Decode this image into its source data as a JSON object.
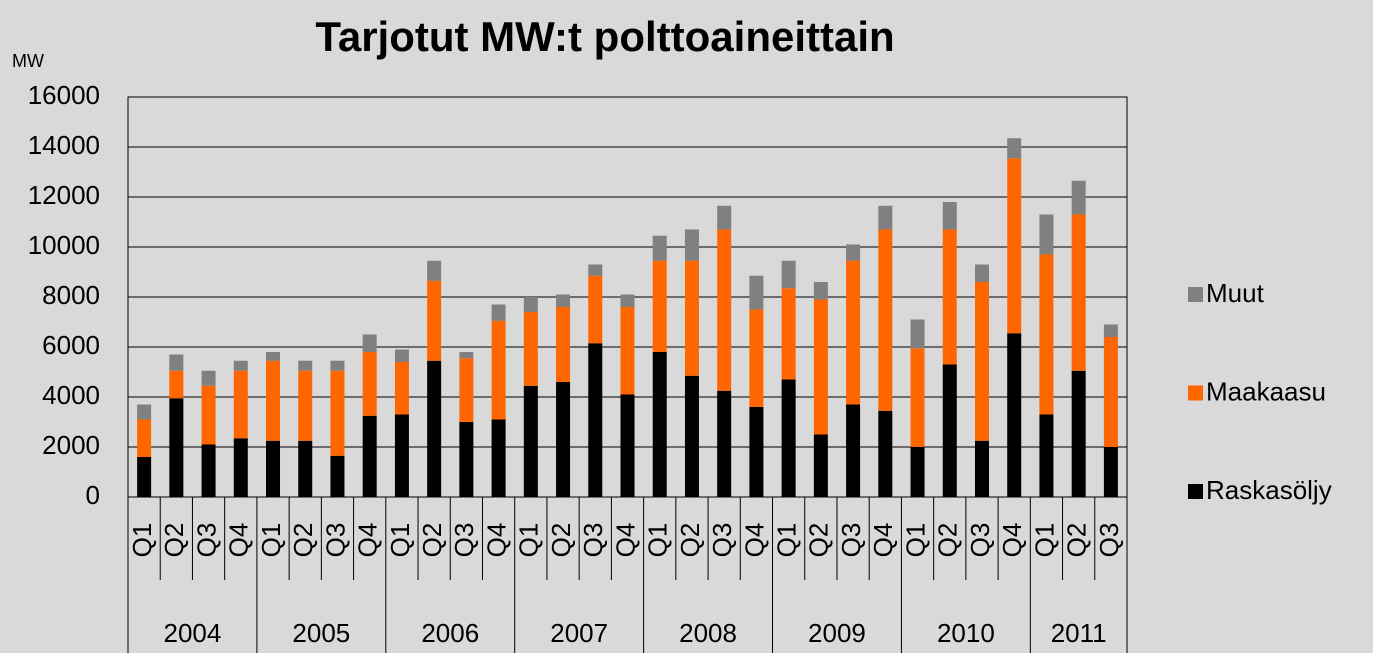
{
  "chart_data": {
    "type": "bar",
    "stacked": true,
    "title": "Tarjotut MW:t polttoaineittain",
    "y_label": "MW",
    "groups": [
      {
        "name": "2004",
        "categories": [
          "Q1",
          "Q2",
          "Q3",
          "Q4"
        ]
      },
      {
        "name": "2005",
        "categories": [
          "Q1",
          "Q2",
          "Q3",
          "Q4"
        ]
      },
      {
        "name": "2006",
        "categories": [
          "Q1",
          "Q2",
          "Q3",
          "Q4"
        ]
      },
      {
        "name": "2007",
        "categories": [
          "Q1",
          "Q2",
          "Q3",
          "Q4"
        ]
      },
      {
        "name": "2008",
        "categories": [
          "Q1",
          "Q2",
          "Q3",
          "Q4"
        ]
      },
      {
        "name": "2009",
        "categories": [
          "Q1",
          "Q2",
          "Q3",
          "Q4"
        ]
      },
      {
        "name": "2010",
        "categories": [
          "Q1",
          "Q2",
          "Q3",
          "Q4"
        ]
      },
      {
        "name": "2011",
        "categories": [
          "Q1",
          "Q2",
          "Q3"
        ]
      }
    ],
    "series": [
      {
        "name": "Raskasöljy",
        "color": "#000000",
        "values": [
          1600,
          3950,
          2100,
          2350,
          2250,
          2250,
          1650,
          3250,
          3300,
          5450,
          3000,
          3100,
          4450,
          4600,
          6150,
          4100,
          5800,
          4850,
          4250,
          3600,
          4700,
          2500,
          3700,
          3450,
          2000,
          5300,
          2250,
          6550,
          3300,
          5050,
          2000
        ]
      },
      {
        "name": "Maakaasu",
        "color": "#ff6600",
        "values": [
          1500,
          1100,
          2350,
          2700,
          3200,
          2800,
          3400,
          2550,
          2100,
          3200,
          2550,
          3950,
          2950,
          3000,
          2700,
          3500,
          3650,
          4600,
          6450,
          3900,
          3650,
          5400,
          5750,
          7250,
          3950,
          5400,
          6350,
          7000,
          6400,
          6250,
          4400
        ]
      },
      {
        "name": "Muut",
        "color": "#808080",
        "values": [
          600,
          650,
          600,
          400,
          350,
          400,
          400,
          700,
          500,
          800,
          250,
          650,
          600,
          500,
          450,
          500,
          1000,
          1250,
          950,
          1350,
          1100,
          700,
          650,
          950,
          1150,
          1100,
          700,
          800,
          1600,
          1350,
          500
        ]
      }
    ],
    "ylim": [
      0,
      16000
    ],
    "yticks": [
      0,
      2000,
      4000,
      6000,
      8000,
      10000,
      12000,
      14000,
      16000
    ],
    "grid": true,
    "legend": "right"
  }
}
